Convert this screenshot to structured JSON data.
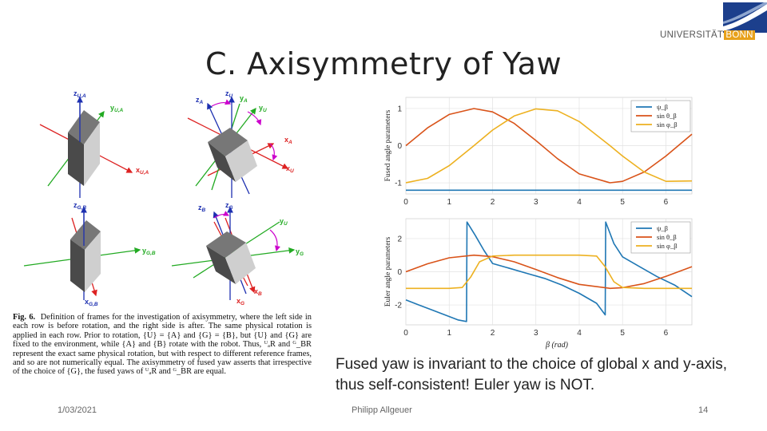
{
  "slide": {
    "title": "C.  Axisymmetry of Yaw",
    "logo": {
      "university": "UNIVERSITÄT",
      "city": "BONN",
      "colors": {
        "blue": "#1c3f8c",
        "gold": "#e8a11a"
      }
    },
    "note": "Fused yaw is invariant to the choice of global x and y-axis, thus self-consistent! Euler yaw is NOT.",
    "footer": {
      "date": "1/03/2021",
      "author": "Philipp Allgeuer",
      "page": "14"
    }
  },
  "figure": {
    "labels": {
      "z_UA": "z",
      "z_UA_sub": "U,A",
      "y_UA": "y",
      "y_UA_sub": "U,A",
      "x_UA": "x",
      "x_UA_sub": "U,A",
      "zA": "z",
      "zA_sub": "A",
      "zU": "z",
      "zU_sub": "U",
      "yA": "y",
      "yA_sub": "A",
      "yU": "y",
      "yU_sub": "U",
      "xA": "x",
      "xA_sub": "A",
      "xU": "x",
      "xU_sub": "U",
      "z_GB": "z",
      "z_GB_sub": "G,B",
      "y_GB": "y",
      "y_GB_sub": "G,B",
      "x_GB": "x",
      "x_GB_sub": "G,B",
      "zB": "z",
      "zB_sub": "B",
      "zG": "z",
      "zG_sub": "G",
      "yG1": "y",
      "yG1_sub": "U",
      "yG2": "y",
      "yG2_sub": "G",
      "xB": "x",
      "xB_sub": "B",
      "xG": "x",
      "xG_sub": "G"
    },
    "caption": {
      "label": "Fig. 6.",
      "text": "Definition of frames for the investigation of axisymmetry, where the left side in each row is before rotation, and the right side is after. The same physical rotation is applied in each row. Prior to rotation, {U} = {A} and {G} = {B}, but {U} and {G} are fixed to the environment, while {A} and {B} rotate with the robot. Thus, ᵁₐR and ᴳ_BR represent the exact same physical rotation, but with respect to different reference frames, and so are not numerically equal. The axisymmetry of fused yaw asserts that irrespective of the choice of {G}, the fused yaws of ᵁₐR and ᴳ_BR are equal."
    }
  },
  "chart_data": [
    {
      "type": "line",
      "ylabel": "Fused angle parameters",
      "xlim": [
        0,
        6.6
      ],
      "ylim": [
        -1.3,
        1.3
      ],
      "xticks": [
        0,
        1,
        2,
        3,
        4,
        5,
        6
      ],
      "yticks": [
        1,
        0,
        -1
      ],
      "grid": true,
      "legend": {
        "position": "top-right",
        "entries": [
          "ψ_β",
          "sin θ_β",
          "sin φ_β"
        ]
      },
      "series": [
        {
          "name": "ψ_β",
          "color": "#1f77b4",
          "x": [
            0,
            6.6
          ],
          "y": [
            -1.2,
            -1.2
          ]
        },
        {
          "name": "sin θ_β",
          "color": "#d95319",
          "x": [
            0,
            0.5,
            1,
            1.57,
            2,
            2.5,
            3,
            3.5,
            4,
            4.71,
            5,
            5.5,
            6,
            6.6
          ],
          "y": [
            0,
            0.48,
            0.84,
            1,
            0.91,
            0.6,
            0.14,
            -0.35,
            -0.76,
            -1,
            -0.96,
            -0.71,
            -0.28,
            0.31
          ]
        },
        {
          "name": "sin φ_β",
          "color": "#edb120",
          "x": [
            0,
            0.5,
            1,
            1.57,
            2,
            2.5,
            3,
            3.5,
            4,
            4.71,
            5,
            5.5,
            6,
            6.6
          ],
          "y": [
            -1,
            -0.88,
            -0.54,
            0,
            0.42,
            0.8,
            0.99,
            0.94,
            0.65,
            0,
            -0.28,
            -0.71,
            -0.96,
            -0.95
          ]
        }
      ]
    },
    {
      "type": "line",
      "ylabel": "Euler angle parameters",
      "xlabel": "β (rad)",
      "xlim": [
        0,
        6.6
      ],
      "ylim": [
        -3.2,
        3.2
      ],
      "xticks": [
        0,
        1,
        2,
        3,
        4,
        5,
        6
      ],
      "yticks": [
        2,
        0,
        -2
      ],
      "grid": true,
      "legend": {
        "position": "top-right",
        "entries": [
          "ψ_β",
          "sin θ_β",
          "sin φ_β"
        ]
      },
      "series": [
        {
          "name": "ψ_β",
          "color": "#1f77b4",
          "x": [
            0,
            0.3,
            0.6,
            0.9,
            1.2,
            1.4,
            1.41,
            1.6,
            1.8,
            2.0,
            2.4,
            2.8,
            3.2,
            3.6,
            4.0,
            4.4,
            4.6,
            4.61,
            4.8,
            5.0,
            5.4,
            5.8,
            6.2,
            6.6
          ],
          "y": [
            -1.7,
            -2.0,
            -2.3,
            -2.6,
            -2.9,
            -3.0,
            3.0,
            2.2,
            1.3,
            0.5,
            0.2,
            -0.1,
            -0.4,
            -0.8,
            -1.3,
            -1.9,
            -2.6,
            3.0,
            1.7,
            0.9,
            0.3,
            -0.3,
            -0.8,
            -1.5
          ]
        },
        {
          "name": "sin θ_β",
          "color": "#d95319",
          "x": [
            0,
            0.5,
            1,
            1.57,
            2,
            2.5,
            3,
            3.5,
            4,
            4.71,
            5,
            5.5,
            6,
            6.6
          ],
          "y": [
            0,
            0.48,
            0.84,
            1,
            0.91,
            0.6,
            0.14,
            -0.35,
            -0.76,
            -1,
            -0.96,
            -0.71,
            -0.28,
            0.31
          ]
        },
        {
          "name": "sin φ_β",
          "color": "#edb120",
          "x": [
            0,
            0.5,
            1.0,
            1.3,
            1.5,
            1.7,
            2.0,
            2.5,
            3.0,
            3.5,
            4.0,
            4.4,
            4.6,
            4.8,
            5.0,
            5.5,
            6.0,
            6.6
          ],
          "y": [
            -1,
            -1,
            -1,
            -0.95,
            -0.3,
            0.6,
            0.95,
            1,
            1,
            1,
            1,
            0.95,
            0.3,
            -0.6,
            -0.95,
            -1,
            -1,
            -1
          ]
        }
      ]
    }
  ]
}
